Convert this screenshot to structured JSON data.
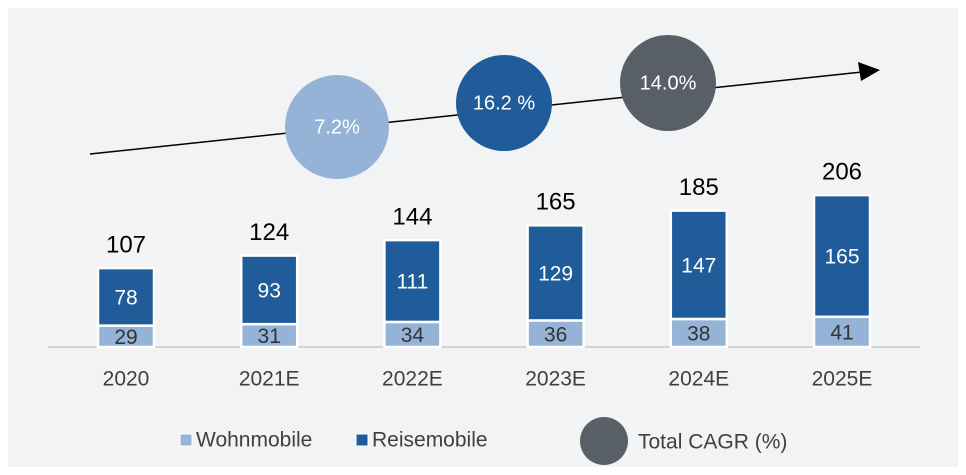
{
  "chart_data": {
    "type": "stacked-bar",
    "categories": [
      "2020",
      "2021E",
      "2022E",
      "2023E",
      "2024E",
      "2025E"
    ],
    "series": [
      {
        "name": "Wohnmobile",
        "color": "#95b3d7",
        "values": [
          29,
          31,
          34,
          36,
          38,
          41
        ]
      },
      {
        "name": "Reisemobile",
        "color": "#1f5c99",
        "values": [
          78,
          93,
          111,
          129,
          147,
          165
        ]
      }
    ],
    "totals": [
      107,
      124,
      144,
      165,
      185,
      206
    ],
    "ylim": [
      0,
      255
    ],
    "cagr": [
      {
        "label": "7.2%",
        "color": "#95b3d7"
      },
      {
        "label": "16.2 %",
        "color": "#1f5c99"
      },
      {
        "label": "14.0%",
        "color": "#595f66"
      }
    ],
    "cagr_legend": "Total CAGR (%)"
  }
}
